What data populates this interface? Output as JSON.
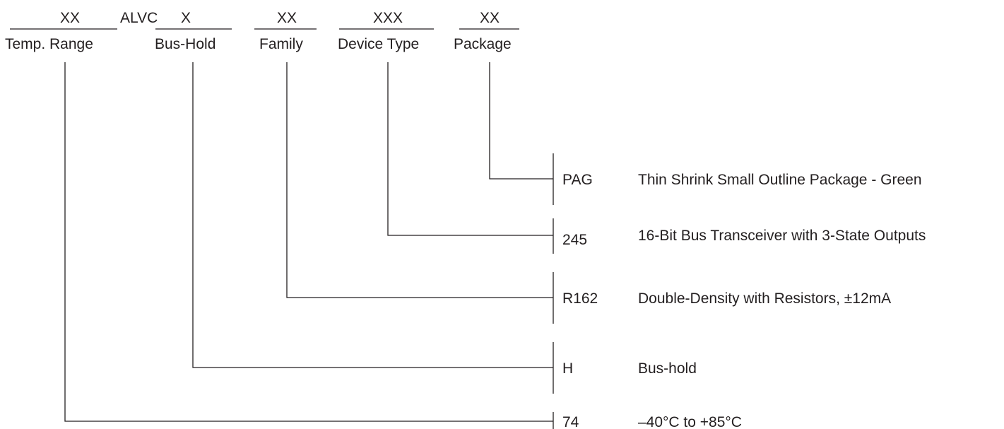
{
  "header": {
    "fields": [
      {
        "placeholder": "XX",
        "label": "Temp. Range"
      },
      {
        "placeholder": "X",
        "label": "Bus-Hold"
      },
      {
        "placeholder": "XX",
        "label": "Family"
      },
      {
        "placeholder": "XXX",
        "label": "Device Type"
      },
      {
        "placeholder": "XX",
        "label": "Package"
      }
    ],
    "prefix": "ALVC"
  },
  "options": [
    {
      "code": "PAG",
      "description": "Thin Shrink Small Outline Package - Green"
    },
    {
      "code": "245",
      "description": "16-Bit Bus Transceiver with 3-State Outputs"
    },
    {
      "code": "R162",
      "description": "Double-Density with Resistors, ±12mA"
    },
    {
      "code": "H",
      "description": "Bus-hold"
    },
    {
      "code": "74",
      "description": "–40°C to +85°C"
    }
  ]
}
